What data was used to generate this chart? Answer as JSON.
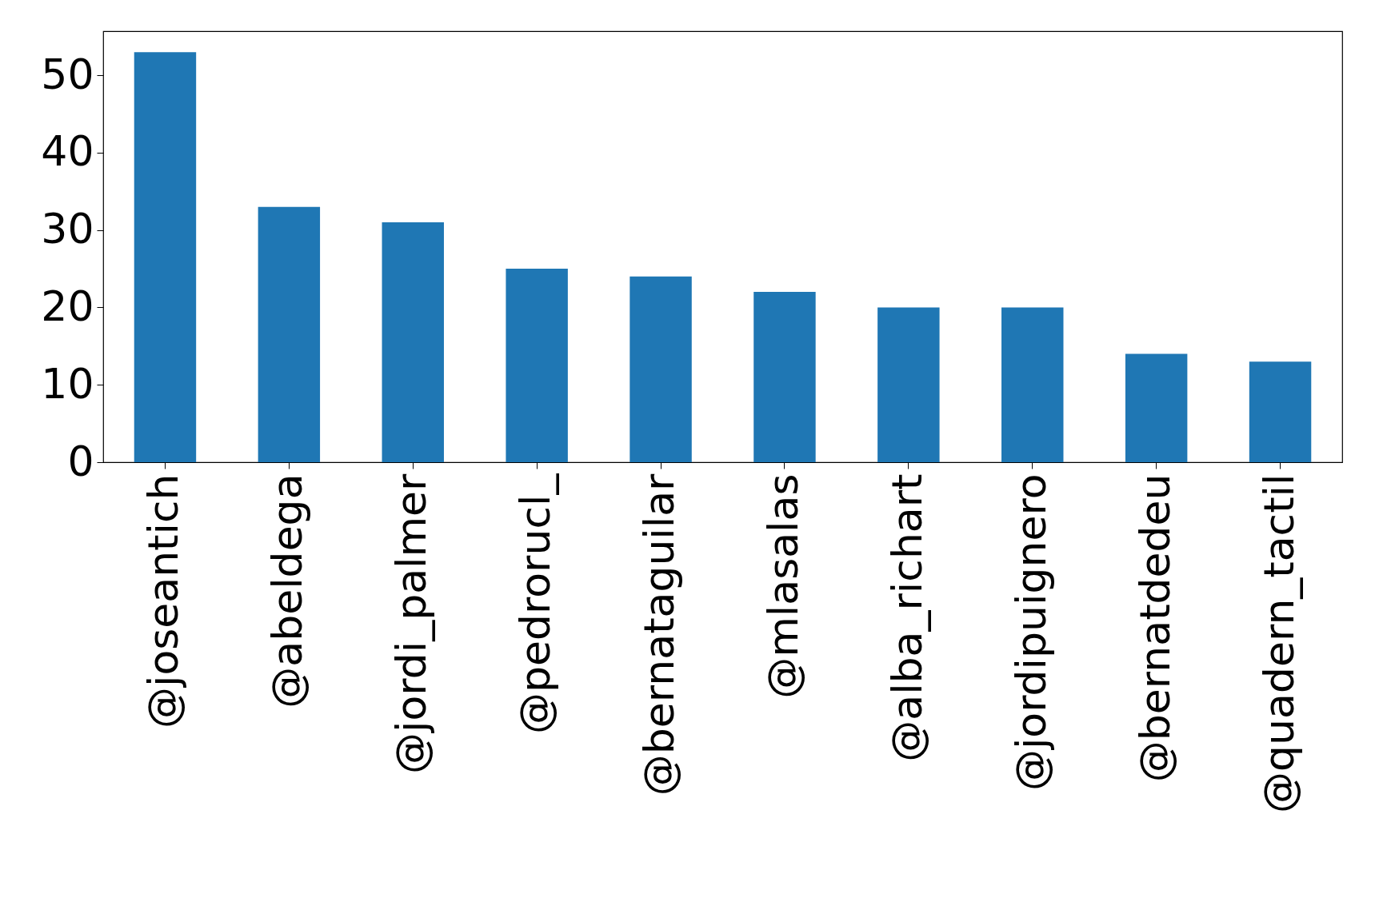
{
  "chart_data": {
    "type": "bar",
    "categories": [
      "@joseantich",
      "@abeldega",
      "@jordi_palmer",
      "@pedrorucl_",
      "@bernataguilar",
      "@mlasalas",
      "@alba_richart",
      "@jordipuignero",
      "@bernatdedeu",
      "@quadern_tactil"
    ],
    "values": [
      53,
      33,
      31,
      25,
      24,
      22,
      20,
      20,
      14,
      13
    ],
    "color": "#1f77b4",
    "ylim": [
      0,
      55.7
    ],
    "yticks": [
      0,
      10,
      20,
      30,
      40,
      50
    ],
    "grid": false
  }
}
